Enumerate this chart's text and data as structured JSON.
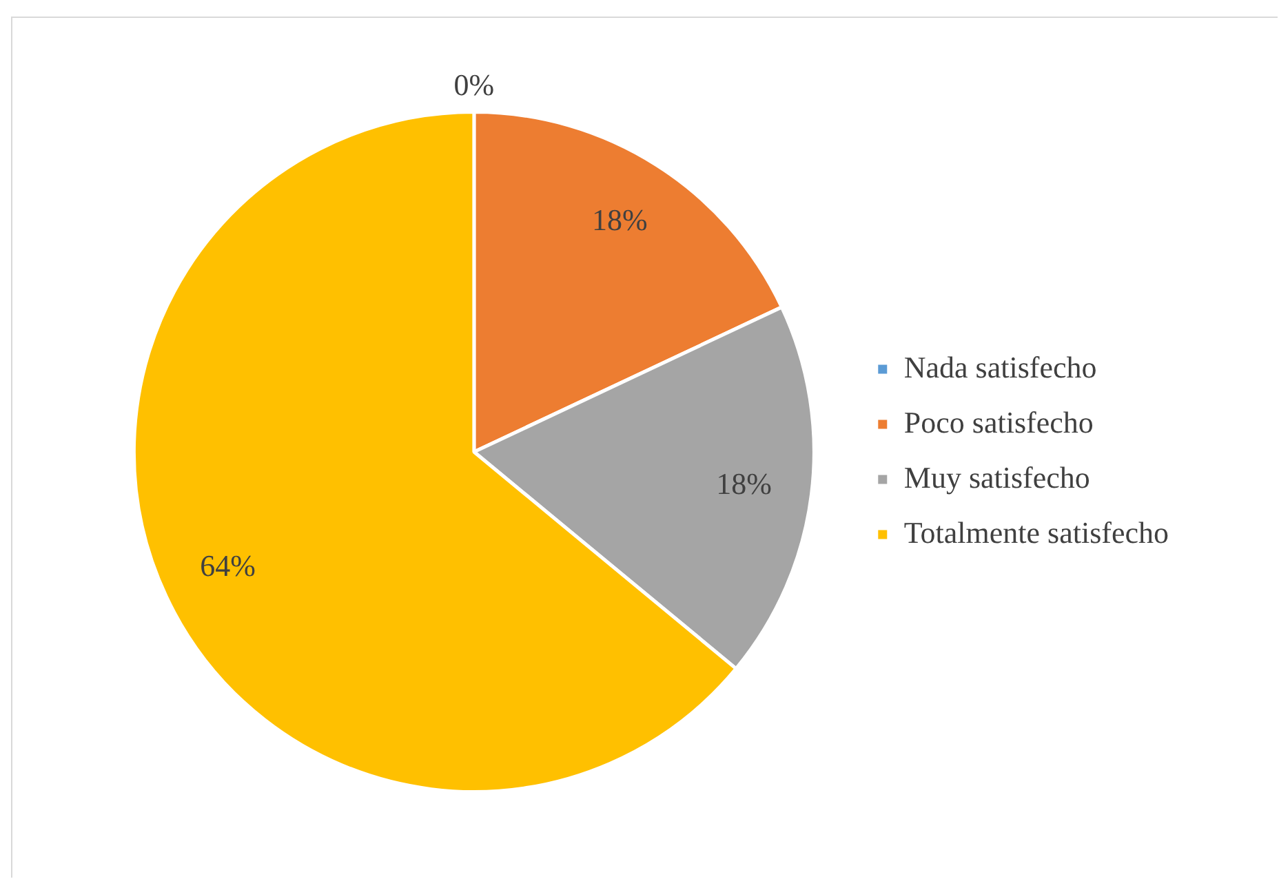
{
  "chart_data": {
    "type": "pie",
    "categories": [
      "Nada satisfecho",
      "Poco satisfecho",
      "Muy satisfecho",
      "Totalmente satisfecho"
    ],
    "values": [
      0,
      18,
      18,
      64
    ],
    "colors": [
      "#5b9bd5",
      "#ed7d31",
      "#a5a5a5",
      "#ffc000"
    ],
    "value_labels": [
      "0%",
      "18%",
      "18%",
      "64%"
    ],
    "legend": "right"
  }
}
